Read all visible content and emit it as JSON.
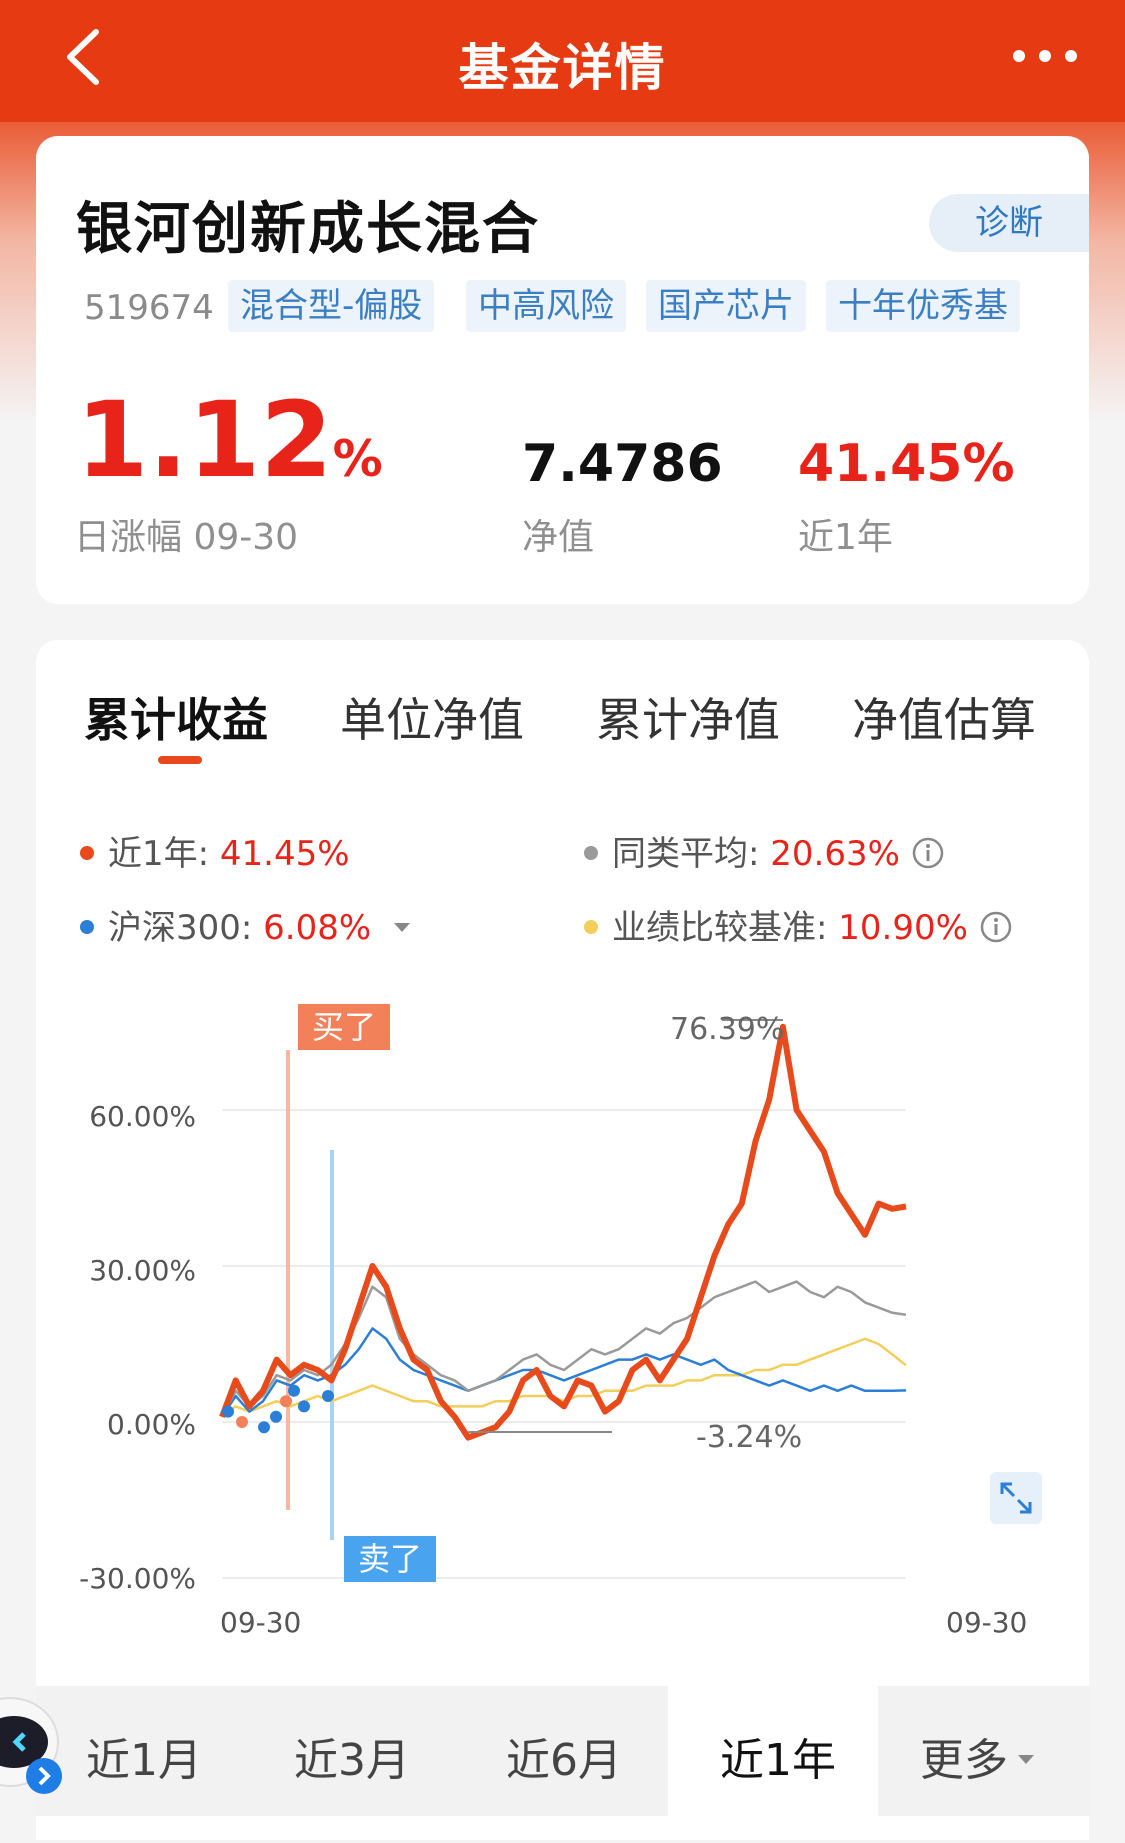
{
  "header": {
    "title": "基金详情"
  },
  "fund": {
    "name": "银河创新成长混合",
    "code": "519674",
    "diagnose_label": "诊断",
    "tags": [
      "混合型-偏股",
      "中高风险",
      "国产芯片",
      "十年优秀基"
    ],
    "daily_change": {
      "value": "1.12",
      "unit": "%",
      "label": "日涨幅 09-30"
    },
    "nav": {
      "value": "7.4786",
      "label": "净值"
    },
    "one_year": {
      "value": "41.45%",
      "label": "近1年"
    }
  },
  "tabs": [
    "累计收益",
    "单位净值",
    "累计净值",
    "净值估算"
  ],
  "legend": {
    "fund": {
      "label": "近1年: ",
      "value": "41.45%",
      "color": "#e84b1b"
    },
    "peer": {
      "label": "同类平均: ",
      "value": "20.63%",
      "color": "#9a9a9a"
    },
    "hs300": {
      "label": "沪深300: ",
      "value": "6.08%",
      "color": "#2c7fd6"
    },
    "benchmark": {
      "label": "业绩比较基准: ",
      "value": "10.90%",
      "color": "#f2cf5b"
    }
  },
  "chart_data": {
    "type": "line",
    "x_labels": [
      "09-30",
      "09-30"
    ],
    "y_ticks": [
      "60.00%",
      "30.00%",
      "0.00%",
      "-30.00%"
    ],
    "ylim": [
      -30,
      70
    ],
    "annotations": {
      "max": "76.39%",
      "min": "-3.24%",
      "buy": "买了",
      "sell": "卖了"
    },
    "series": [
      {
        "name": "近1年",
        "color": "#e84b1b",
        "values": [
          1,
          8,
          3,
          6,
          12,
          9,
          11,
          10,
          8,
          14,
          22,
          30,
          26,
          18,
          12,
          10,
          4,
          1,
          -3,
          -2,
          -1,
          2,
          8,
          10,
          5,
          3,
          8,
          7,
          2,
          4,
          10,
          12,
          8,
          12,
          16,
          24,
          32,
          38,
          42,
          54,
          62,
          76,
          60,
          56,
          52,
          44,
          40,
          36,
          42,
          41,
          41.45
        ]
      },
      {
        "name": "同类平均",
        "color": "#9a9a9a",
        "values": [
          1,
          6,
          3,
          5,
          9,
          8,
          10,
          9,
          11,
          15,
          20,
          26,
          24,
          16,
          13,
          11,
          9,
          8,
          6,
          7,
          8,
          10,
          12,
          13,
          11,
          10,
          12,
          14,
          13,
          14,
          16,
          18,
          17,
          19,
          20,
          22,
          24,
          25,
          26,
          27,
          25,
          26,
          27,
          25,
          24,
          26,
          25,
          23,
          22,
          21,
          20.63
        ]
      },
      {
        "name": "沪深300",
        "color": "#2c7fd6",
        "values": [
          1,
          5,
          2,
          4,
          8,
          7,
          9,
          8,
          9,
          11,
          14,
          18,
          16,
          12,
          10,
          9,
          8,
          7,
          6,
          7,
          8,
          9,
          10,
          10,
          9,
          8,
          9,
          10,
          11,
          12,
          12,
          13,
          12,
          13,
          12,
          11,
          12,
          10,
          9,
          8,
          7,
          8,
          7,
          6,
          7,
          6,
          7,
          6,
          6,
          6,
          6.08
        ]
      },
      {
        "name": "业绩比较基准",
        "color": "#f2cf5b",
        "values": [
          1,
          3,
          2,
          3,
          4,
          3,
          4,
          5,
          4,
          5,
          6,
          7,
          6,
          5,
          4,
          4,
          3,
          3,
          3,
          3,
          4,
          4,
          5,
          5,
          5,
          4,
          5,
          5,
          6,
          6,
          6,
          7,
          7,
          7,
          8,
          8,
          9,
          9,
          9,
          10,
          10,
          11,
          11,
          12,
          13,
          14,
          15,
          16,
          15,
          13,
          10.9
        ]
      }
    ]
  },
  "periods": [
    "近1月",
    "近3月",
    "近6月",
    "近1年",
    "更多"
  ],
  "colors": {
    "header": "#e63a12",
    "accent_red": "#e8241a",
    "tag_blue": "#3a7fc4"
  },
  "icons": [
    "back-arrow-icon",
    "more-dots-icon",
    "info-icon",
    "caret-down-icon",
    "expand-icon",
    "robot-assistant-icon"
  ]
}
